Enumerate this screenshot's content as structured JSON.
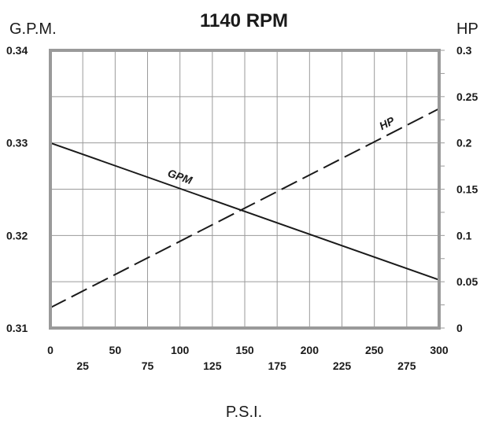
{
  "chart_data": {
    "type": "line",
    "title": "1140 RPM",
    "xlabel": "P.S.I.",
    "ylabel": "G.P.M.",
    "y2label": "HP",
    "xlim": [
      0,
      300
    ],
    "ylim": [
      0.31,
      0.34
    ],
    "y2lim": [
      0,
      0.3
    ],
    "x_ticks_row1": [
      "0",
      "50",
      "100",
      "150",
      "200",
      "250",
      "300"
    ],
    "x_ticks_row2": [
      "25",
      "75",
      "125",
      "175",
      "225",
      "275"
    ],
    "y_ticks": [
      "0.31",
      "0.32",
      "0.33",
      "0.34"
    ],
    "y2_ticks": [
      "0",
      "0.05",
      "0.1",
      "0.15",
      "0.2",
      "0.25",
      "0.3"
    ],
    "grid": true,
    "series": [
      {
        "name": "GPM",
        "axis": "left",
        "style": "solid",
        "x": [
          0,
          300
        ],
        "y": [
          0.33,
          0.3152
        ]
      },
      {
        "name": "HP",
        "axis": "right",
        "style": "dashed",
        "x": [
          0,
          300
        ],
        "y": [
          0.022,
          0.237
        ]
      }
    ]
  }
}
